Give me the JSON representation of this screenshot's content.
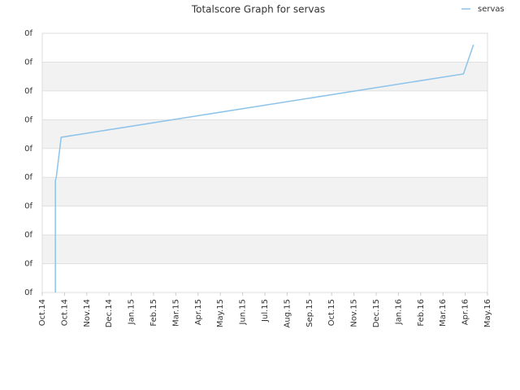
{
  "chart_data": {
    "type": "line",
    "title": "Totalscore Graph for servas",
    "legend": "top-right",
    "x": [
      0.59,
      0.59,
      0.63,
      0.85,
      18.92,
      19.37
    ],
    "series": [
      {
        "name": "servas",
        "color": "#8ec3ea",
        "values": [
          0,
          3.89,
          4.0,
          5.39,
          7.59,
          8.6
        ]
      }
    ],
    "xlim": [
      0,
      20
    ],
    "xticks": [
      {
        "value": 0,
        "label": "Oct.14"
      },
      {
        "value": 1,
        "label": "Oct.14"
      },
      {
        "value": 2,
        "label": "Nov.14"
      },
      {
        "value": 3,
        "label": "Dec.14"
      },
      {
        "value": 4,
        "label": "Jan.15"
      },
      {
        "value": 5,
        "label": "Feb.15"
      },
      {
        "value": 6,
        "label": "Mar.15"
      },
      {
        "value": 7,
        "label": "Apr.15"
      },
      {
        "value": 8,
        "label": "May.15"
      },
      {
        "value": 9,
        "label": "Jun.15"
      },
      {
        "value": 10,
        "label": "Jul.15"
      },
      {
        "value": 11,
        "label": "Aug.15"
      },
      {
        "value": 12,
        "label": "Sep.15"
      },
      {
        "value": 13,
        "label": "Oct.15"
      },
      {
        "value": 14,
        "label": "Nov.15"
      },
      {
        "value": 15,
        "label": "Dec.15"
      },
      {
        "value": 16,
        "label": "Jan.16"
      },
      {
        "value": 17,
        "label": "Feb.16"
      },
      {
        "value": 18,
        "label": "Mar.16"
      },
      {
        "value": 19,
        "label": "Apr.16"
      },
      {
        "value": 20,
        "label": "May.16"
      }
    ],
    "ylim": [
      0,
      9
    ],
    "yticks": [
      {
        "value": 0,
        "label": "0f"
      },
      {
        "value": 1,
        "label": "0f"
      },
      {
        "value": 2,
        "label": "0f"
      },
      {
        "value": 3,
        "label": "0f"
      },
      {
        "value": 4,
        "label": "0f"
      },
      {
        "value": 5,
        "label": "0f"
      },
      {
        "value": 6,
        "label": "0f"
      },
      {
        "value": 7,
        "label": "0f"
      },
      {
        "value": 8,
        "label": "0f"
      },
      {
        "value": 9,
        "label": "0f"
      }
    ],
    "grid": true
  }
}
